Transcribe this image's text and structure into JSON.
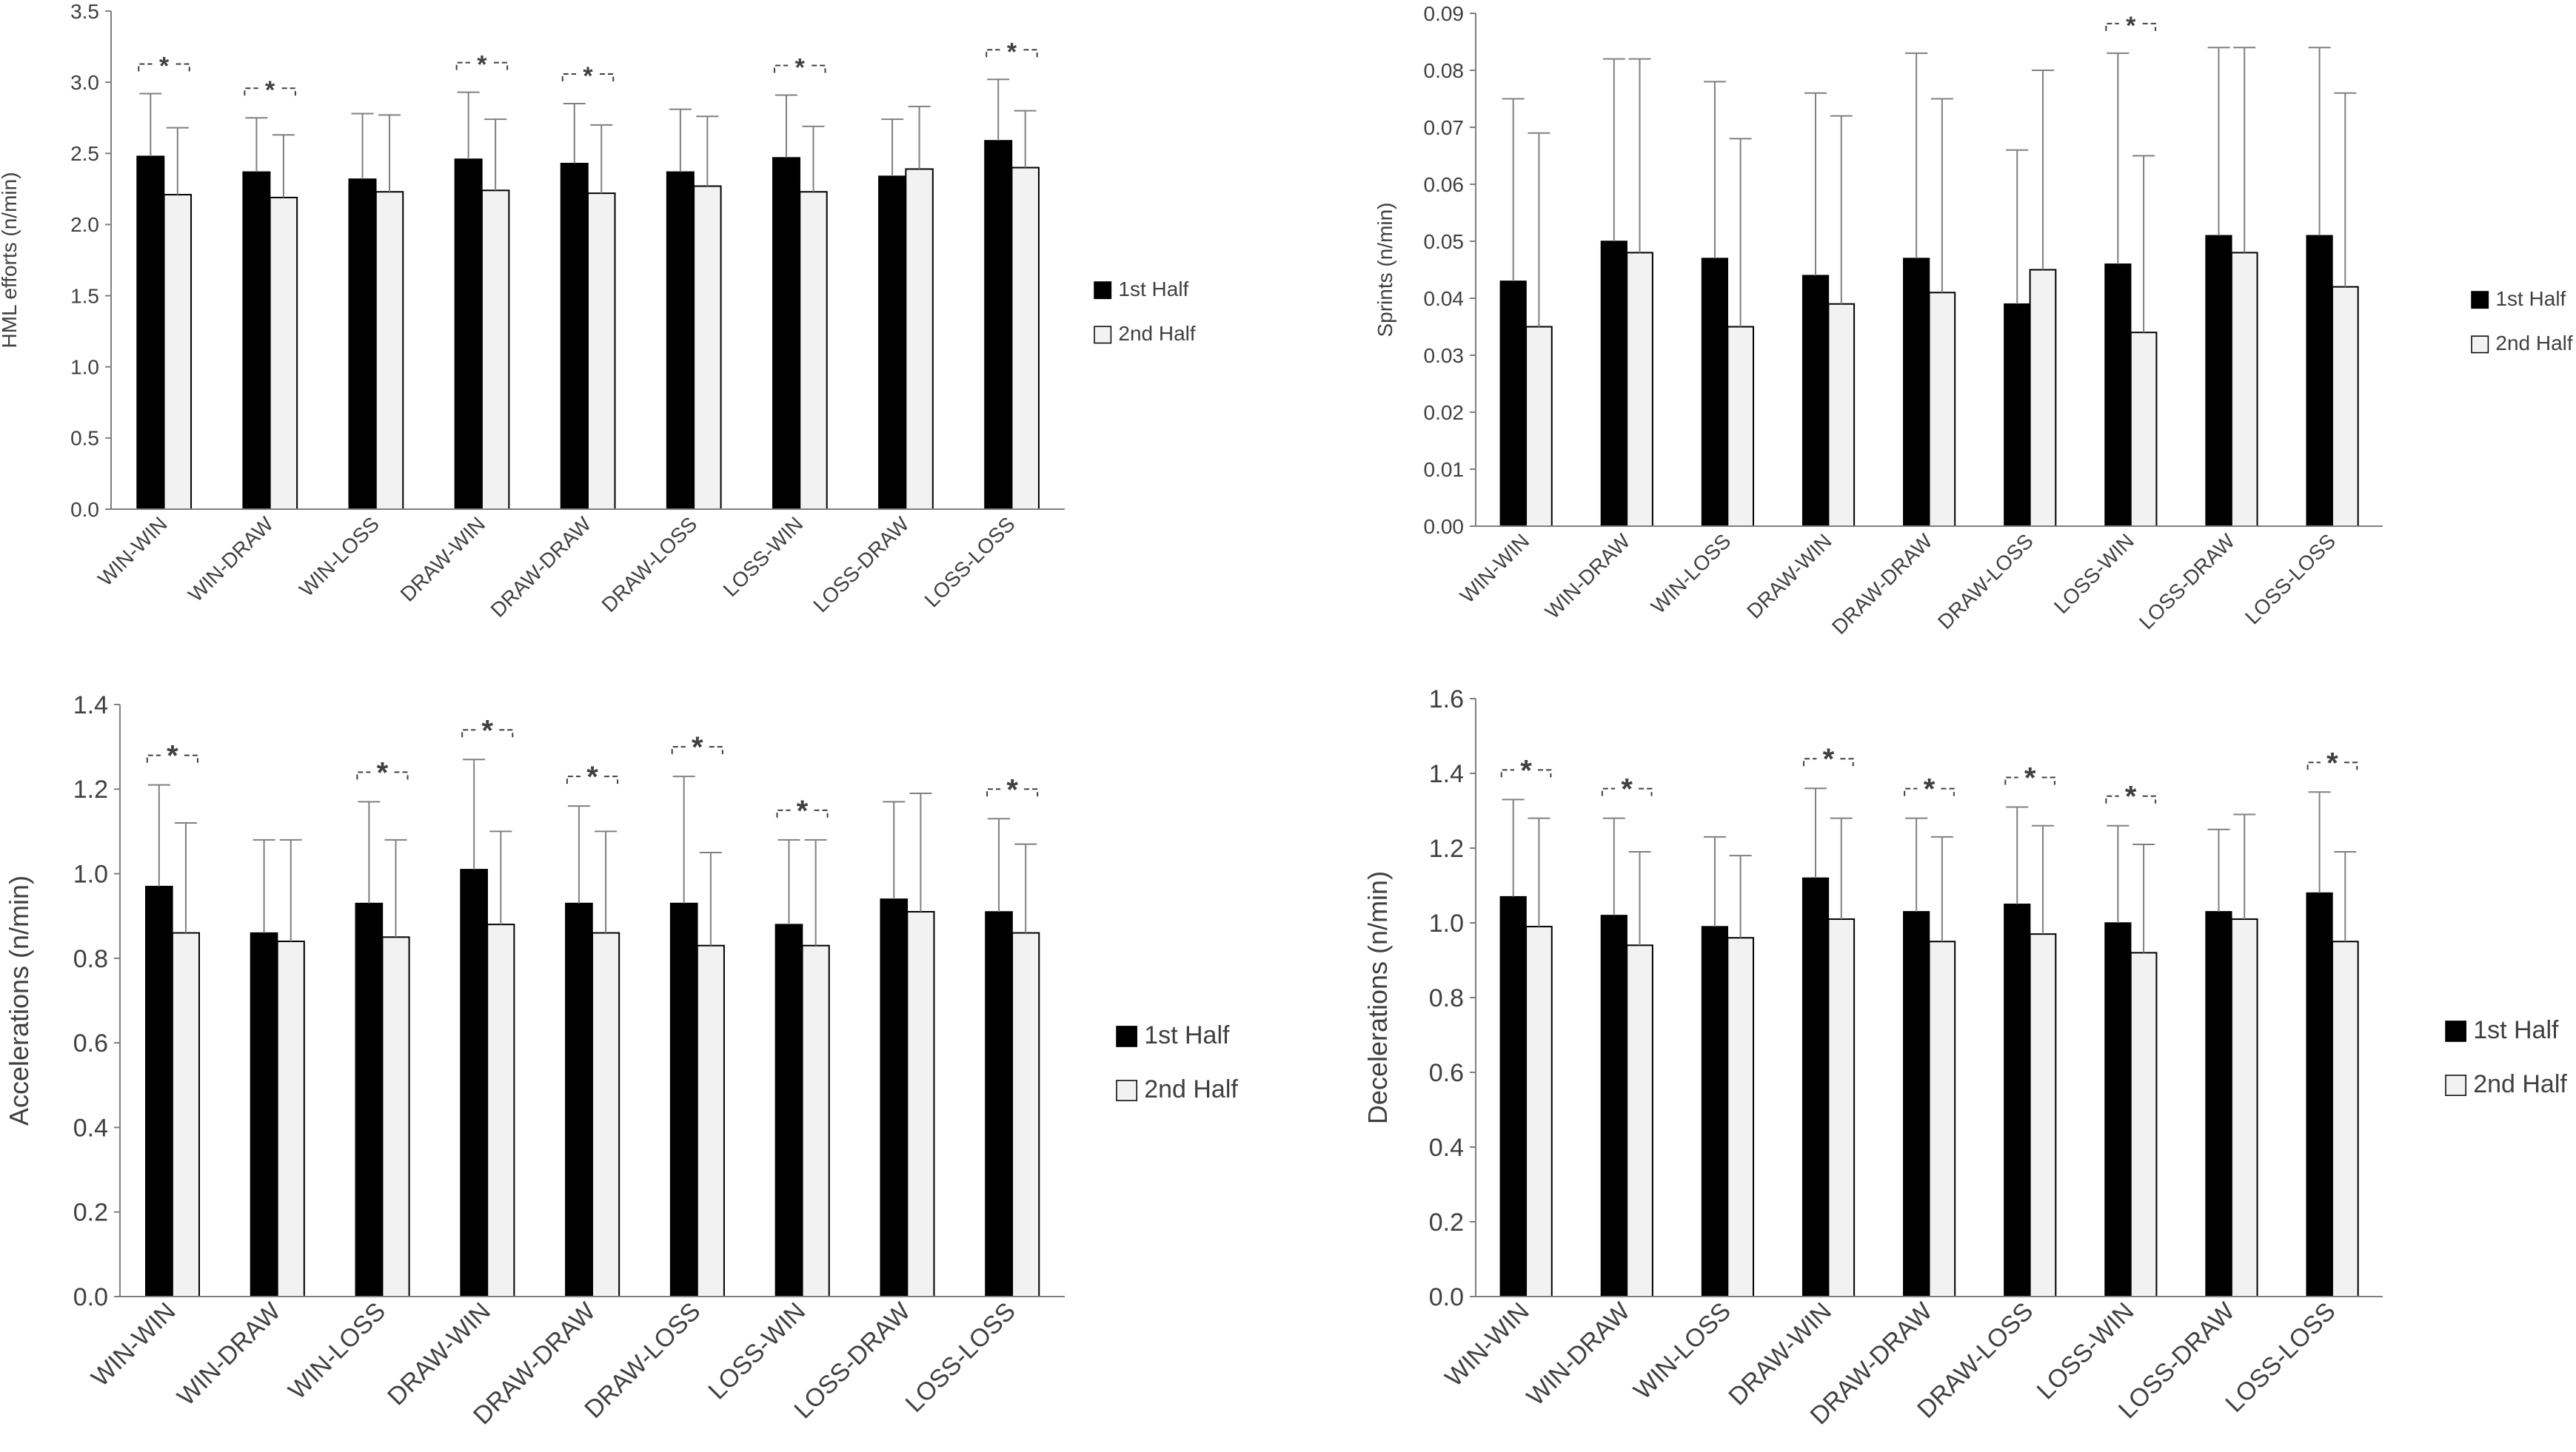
{
  "legend_labels": [
    "1st Half",
    "2nd Half"
  ],
  "colors": {
    "first_half": "#000000",
    "second_half": "#f2f2f2",
    "axis": "#7f7f7f",
    "text": "#404040"
  },
  "significance_marker": "*",
  "chart_data": [
    {
      "type": "bar",
      "ylabel": "HML efforts (n/min)",
      "ylim": [
        0,
        3.5
      ],
      "ytick_step": 0.5,
      "ytick_decimals": 1,
      "categories": [
        "WIN-WIN",
        "WIN-DRAW",
        "WIN-LOSS",
        "DRAW-WIN",
        "DRAW-DRAW",
        "DRAW-LOSS",
        "LOSS-WIN",
        "LOSS-DRAW",
        "LOSS-LOSS"
      ],
      "series": [
        {
          "name": "1st Half",
          "values": [
            2.48,
            2.37,
            2.32,
            2.46,
            2.43,
            2.37,
            2.47,
            2.34,
            2.59
          ],
          "errors": [
            0.44,
            0.38,
            0.46,
            0.47,
            0.42,
            0.44,
            0.44,
            0.4,
            0.43
          ]
        },
        {
          "name": "2nd Half",
          "values": [
            2.21,
            2.19,
            2.23,
            2.24,
            2.22,
            2.27,
            2.23,
            2.39,
            2.4
          ],
          "errors": [
            0.47,
            0.44,
            0.54,
            0.5,
            0.48,
            0.49,
            0.46,
            0.44,
            0.4
          ]
        }
      ],
      "significant": [
        true,
        true,
        false,
        true,
        true,
        false,
        true,
        false,
        true
      ]
    },
    {
      "type": "bar",
      "ylabel": "Sprints (n/min)",
      "ylim": [
        0,
        0.09
      ],
      "ytick_step": 0.01,
      "ytick_decimals": 2,
      "categories": [
        "WIN-WIN",
        "WIN-DRAW",
        "WIN-LOSS",
        "DRAW-WIN",
        "DRAW-DRAW",
        "DRAW-LOSS",
        "LOSS-WIN",
        "LOSS-DRAW",
        "LOSS-LOSS"
      ],
      "series": [
        {
          "name": "1st Half",
          "values": [
            0.043,
            0.05,
            0.047,
            0.044,
            0.047,
            0.039,
            0.046,
            0.051,
            0.051
          ],
          "errors": [
            0.032,
            0.032,
            0.031,
            0.032,
            0.036,
            0.027,
            0.037,
            0.033,
            0.033
          ]
        },
        {
          "name": "2nd Half",
          "values": [
            0.035,
            0.048,
            0.035,
            0.039,
            0.041,
            0.045,
            0.034,
            0.048,
            0.042
          ],
          "errors": [
            0.034,
            0.034,
            0.033,
            0.033,
            0.034,
            0.035,
            0.031,
            0.036,
            0.034
          ]
        }
      ],
      "significant": [
        false,
        false,
        false,
        false,
        false,
        false,
        true,
        false,
        false
      ]
    },
    {
      "type": "bar",
      "ylabel": "Accelerations (n/min)",
      "ylim": [
        0,
        1.4
      ],
      "ytick_step": 0.2,
      "ytick_decimals": 1,
      "categories": [
        "WIN-WIN",
        "WIN-DRAW",
        "WIN-LOSS",
        "DRAW-WIN",
        "DRAW-DRAW",
        "DRAW-LOSS",
        "LOSS-WIN",
        "LOSS-DRAW",
        "LOSS-LOSS"
      ],
      "series": [
        {
          "name": "1st Half",
          "values": [
            0.97,
            0.86,
            0.93,
            1.01,
            0.93,
            0.93,
            0.88,
            0.94,
            0.91
          ],
          "errors": [
            0.24,
            0.22,
            0.24,
            0.26,
            0.23,
            0.3,
            0.2,
            0.23,
            0.22
          ]
        },
        {
          "name": "2nd Half",
          "values": [
            0.86,
            0.84,
            0.85,
            0.88,
            0.86,
            0.83,
            0.83,
            0.91,
            0.86
          ],
          "errors": [
            0.26,
            0.24,
            0.23,
            0.22,
            0.24,
            0.22,
            0.25,
            0.28,
            0.21
          ]
        }
      ],
      "significant": [
        true,
        false,
        true,
        true,
        true,
        true,
        true,
        false,
        true
      ]
    },
    {
      "type": "bar",
      "ylabel": "Decelerations (n/min)",
      "ylim": [
        0,
        1.6
      ],
      "ytick_step": 0.2,
      "ytick_decimals": 1,
      "categories": [
        "WIN-WIN",
        "WIN-DRAW",
        "WIN-LOSS",
        "DRAW-WIN",
        "DRAW-DRAW",
        "DRAW-LOSS",
        "LOSS-WIN",
        "LOSS-DRAW",
        "LOSS-LOSS"
      ],
      "series": [
        {
          "name": "1st Half",
          "values": [
            1.07,
            1.02,
            0.99,
            1.12,
            1.03,
            1.05,
            1.0,
            1.03,
            1.08
          ],
          "errors": [
            0.26,
            0.26,
            0.24,
            0.24,
            0.25,
            0.26,
            0.26,
            0.22,
            0.27
          ]
        },
        {
          "name": "2nd Half",
          "values": [
            0.99,
            0.94,
            0.96,
            1.01,
            0.95,
            0.97,
            0.92,
            1.01,
            0.95
          ],
          "errors": [
            0.29,
            0.25,
            0.22,
            0.27,
            0.28,
            0.29,
            0.29,
            0.28,
            0.24
          ]
        }
      ],
      "significant": [
        true,
        true,
        false,
        true,
        true,
        true,
        true,
        false,
        true
      ]
    }
  ]
}
